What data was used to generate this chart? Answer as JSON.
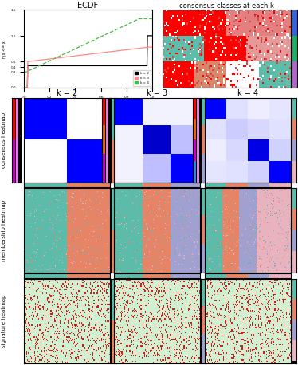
{
  "title_ecdf": "ECDF",
  "title_consensus_classes": "consensus classes at each k",
  "k_labels": [
    "k = 2",
    "k = 3",
    "k = 4"
  ],
  "row_labels": [
    "consensus heatmap",
    "membership heatmap",
    "signature heatmap"
  ],
  "ecdf_color_k2": "#000000",
  "ecdf_color_k3": "#ff8888",
  "ecdf_color_k4": "#44bb44",
  "figure_bg": "#ffffff",
  "teal": [
    0.36,
    0.74,
    0.67
  ],
  "orange": [
    0.91,
    0.52,
    0.4
  ],
  "purple": [
    0.63,
    0.63,
    0.82
  ],
  "pink": [
    0.91,
    0.7,
    0.75
  ],
  "sig_bg": [
    0.82,
    0.94,
    0.82
  ],
  "sig_dot": [
    0.85,
    0.1,
    0.1
  ]
}
